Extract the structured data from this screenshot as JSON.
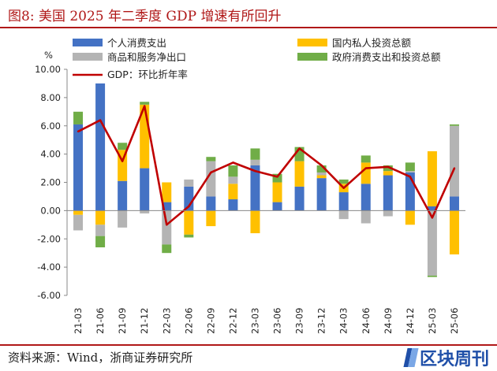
{
  "figure": {
    "title": "图8:   美国 2025 年二季度 GDP 增速有所回升",
    "source": "资料来源：Wind，浙商证券研究所",
    "watermark": "区块周刊"
  },
  "chart_data": {
    "type": "bar",
    "stacked": true,
    "ylabel": "%",
    "ylim": [
      -6,
      10
    ],
    "yticks": [
      "-6.00",
      "-4.00",
      "-2.00",
      "0.00",
      "2.00",
      "4.00",
      "6.00",
      "8.00",
      "10.00"
    ],
    "categories": [
      "21-03",
      "21-06",
      "21-09",
      "21-12",
      "22-03",
      "22-06",
      "22-09",
      "22-12",
      "23-03",
      "23-06",
      "23-09",
      "23-12",
      "24-03",
      "24-06",
      "24-09",
      "24-12",
      "25-03",
      "25-06"
    ],
    "series": [
      {
        "name": "个人消费支出",
        "color": "#4472c4",
        "values": [
          6.1,
          9.0,
          2.1,
          3.0,
          0.6,
          1.7,
          1.0,
          0.8,
          3.2,
          0.6,
          1.7,
          2.3,
          1.3,
          1.9,
          2.5,
          2.7,
          0.3,
          1.0
        ]
      },
      {
        "name": "国内私人投资总额",
        "color": "#ffc000",
        "values": [
          -0.3,
          -1.0,
          2.2,
          4.5,
          1.4,
          -1.7,
          -1.1,
          1.1,
          -1.6,
          1.4,
          1.8,
          0.2,
          0.6,
          1.5,
          0.3,
          -1.0,
          3.9,
          -3.1
        ]
      },
      {
        "name": "商品和服务净出口",
        "color": "#b4b4b4",
        "values": [
          -1.1,
          -0.8,
          -1.2,
          -0.2,
          -2.4,
          0.5,
          2.5,
          0.5,
          0.4,
          0.0,
          0.0,
          0.2,
          -0.6,
          -0.9,
          -0.4,
          0.1,
          -4.6,
          5.0
        ]
      },
      {
        "name": "政府消费支出和投资总额",
        "color": "#70ad47",
        "values": [
          0.9,
          -0.8,
          0.5,
          0.2,
          -0.6,
          -0.2,
          0.3,
          0.8,
          0.8,
          0.6,
          1.0,
          0.5,
          0.3,
          0.5,
          0.4,
          0.6,
          -0.1,
          0.1
        ]
      }
    ],
    "line": {
      "name": "GDP：环比折年率",
      "color": "#c00000",
      "values": [
        5.6,
        6.4,
        3.5,
        7.4,
        -1.0,
        0.3,
        2.7,
        3.4,
        2.8,
        2.4,
        4.4,
        3.2,
        1.6,
        3.0,
        3.1,
        2.4,
        -0.5,
        3.0
      ]
    }
  }
}
